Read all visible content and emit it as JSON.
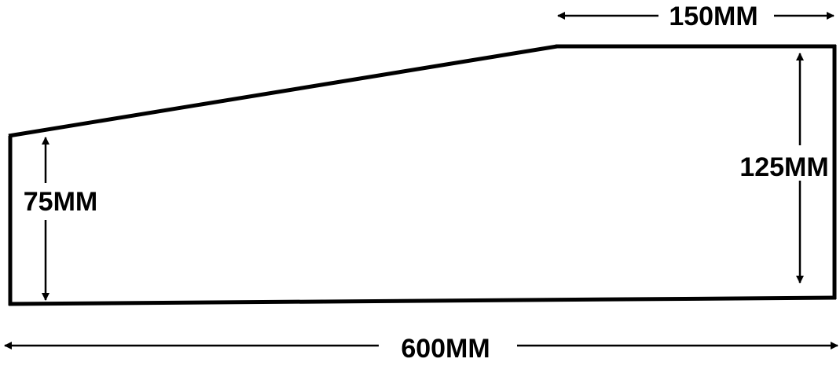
{
  "diagram": {
    "title": "",
    "dimensions": {
      "top_length": "150MM",
      "left_height": "75MM",
      "right_height": "125MM",
      "bottom_length": "600MM"
    }
  }
}
